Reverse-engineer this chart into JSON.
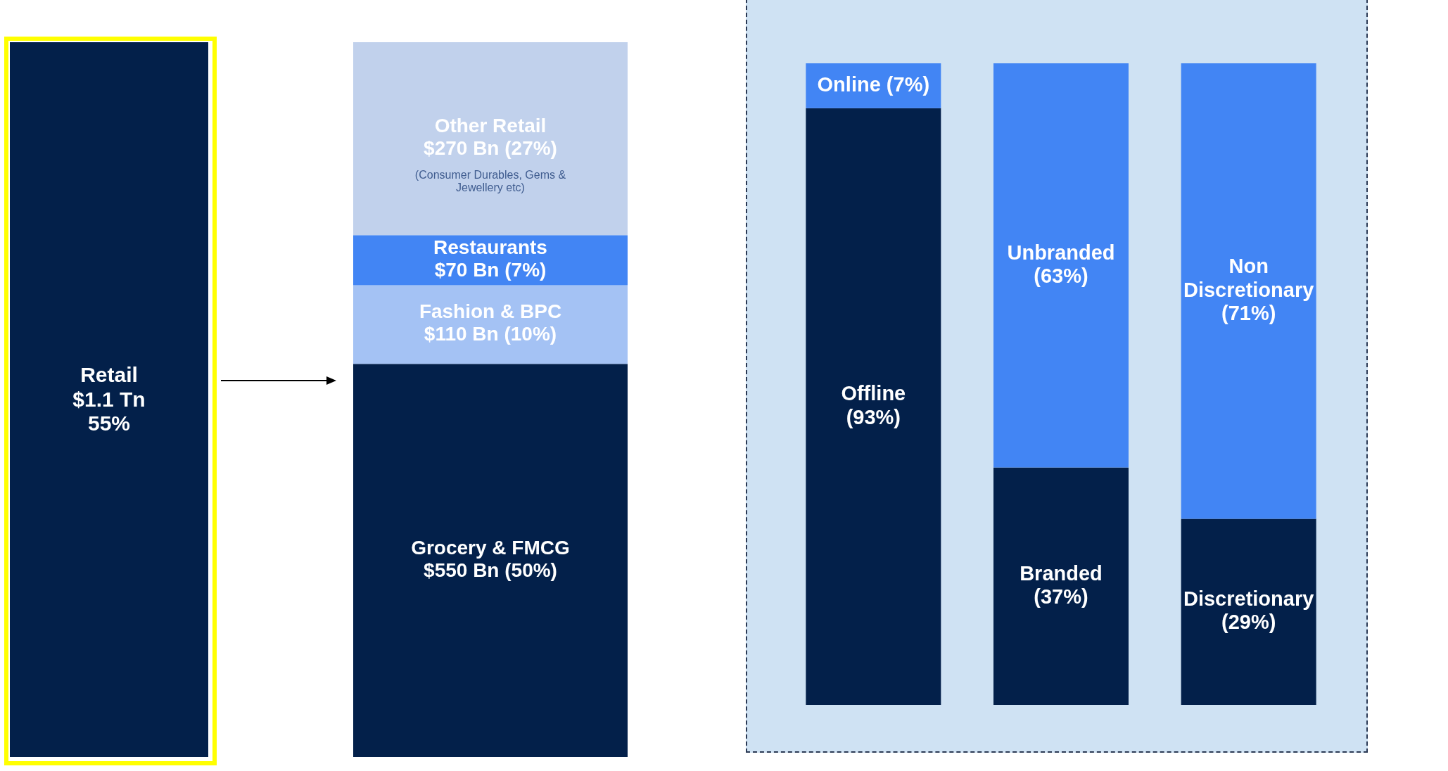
{
  "chart_data": [
    {
      "type": "other",
      "annotations": [
        "Retail\n$1.1 Tn\n55%"
      ]
    },
    {
      "type": "bar",
      "stacked": true,
      "categories": [
        null
      ],
      "ylim": [
        0,
        1000
      ],
      "tick_labels": false,
      "series": [
        {
          "color": "#03204a",
          "values": [
            550
          ],
          "value_labels": [
            "Grocery & FMCG\n$550 Bn (50%)"
          ]
        },
        {
          "color": "#a4c2f4",
          "values": [
            110
          ],
          "value_labels": [
            "Fashion & BPC\n$110 Bn (10%)"
          ]
        },
        {
          "color": "#4285f4",
          "values": [
            70
          ],
          "value_labels": [
            "Restaurants\n$70 Bn (7%)"
          ]
        },
        {
          "color": "#c1d1ec",
          "values": [
            270
          ],
          "value_labels": [
            "Other Retail\n$270 Bn (27%)"
          ]
        }
      ],
      "annotations": [
        "(Consumer Durables, Gems &\nJewellery etc)"
      ]
    },
    {
      "type": "bar",
      "stacked": true,
      "categories": [
        null,
        null,
        null
      ],
      "ylim": [
        0,
        100
      ],
      "tick_labels": false,
      "series": [
        {
          "color": "#03204a",
          "values": [
            93,
            37,
            29
          ],
          "value_labels": [
            "Offline\n(93%)",
            "Branded\n(37%)",
            "Discretionary\n(29%)"
          ]
        },
        {
          "color": "#4285f4",
          "values": [
            7,
            63,
            71
          ],
          "value_labels": [
            "Online (7%)",
            "Unbranded\n(63%)",
            "Non\nDiscretionary\n(71%)"
          ]
        }
      ]
    }
  ]
}
